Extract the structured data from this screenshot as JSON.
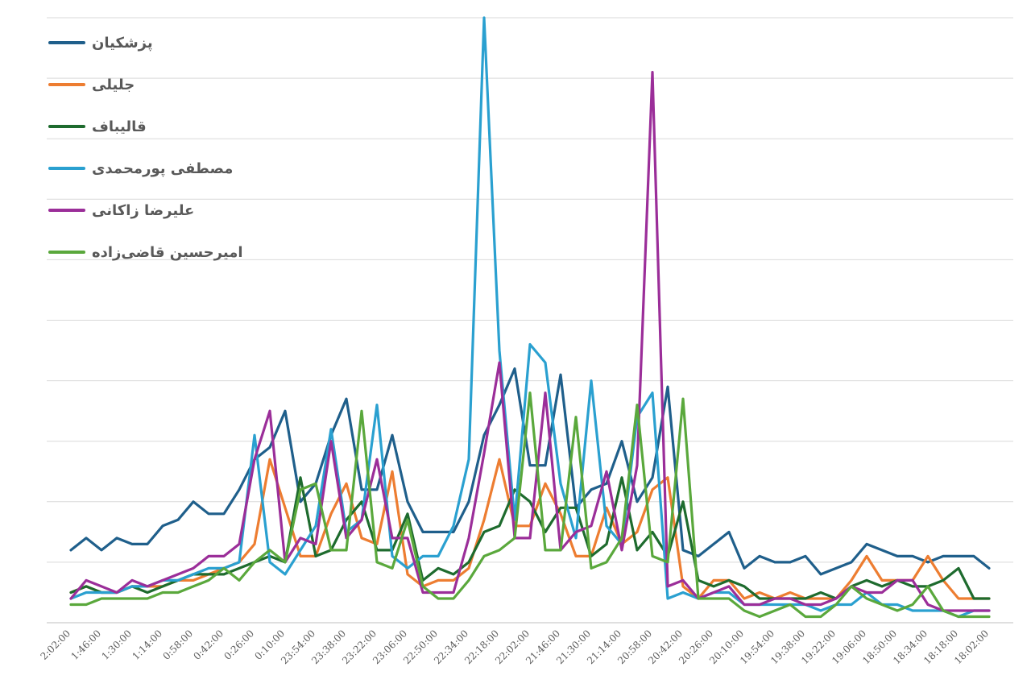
{
  "chart_data": {
    "type": "line",
    "title": "",
    "xlabel": "",
    "ylabel": "",
    "y_tick_labels_shown": false,
    "grid": "horizontal",
    "legend_position": "top-left",
    "ylim": [
      0,
      100
    ],
    "y_gridlines": 10,
    "x": [
      "2:02:00",
      "1:54:00",
      "1:46:00",
      "1:38:00",
      "1:30:00",
      "1:22:00",
      "1:14:00",
      "1:06:00",
      "0:58:00",
      "0:50:00",
      "0:42:00",
      "0:34:00",
      "0:26:00",
      "0:18:00",
      "0:10:00",
      "0:02:00",
      "23:54:00",
      "23:46:00",
      "23:38:00",
      "23:30:00",
      "23:22:00",
      "23:14:00",
      "23:06:00",
      "22:58:00",
      "22:50:00",
      "22:42:00",
      "22:34:00",
      "22:26:00",
      "22:18:00",
      "22:10:00",
      "22:02:00",
      "21:54:00",
      "21:46:00",
      "21:38:00",
      "21:30:00",
      "21:22:00",
      "21:14:00",
      "21:06:00",
      "20:58:00",
      "20:50:00",
      "20:42:00",
      "20:34:00",
      "20:26:00",
      "20:18:00",
      "20:10:00",
      "20:02:00",
      "19:54:00",
      "19:46:00",
      "19:38:00",
      "19:30:00",
      "19:22:00",
      "19:14:00",
      "19:06:00",
      "18:58:00",
      "18:50:00",
      "18:42:00",
      "18:34:00",
      "18:26:00",
      "18:18:00",
      "18:10:00",
      "18:02:00"
    ],
    "x_tick_labels": [
      "2:02:00",
      "1:46:00",
      "1:30:00",
      "1:14:00",
      "0:58:00",
      "0:42:00",
      "0:26:00",
      "0:10:00",
      "23:54:00",
      "23:38:00",
      "23:22:00",
      "23:06:00",
      "22:50:00",
      "22:34:00",
      "22:18:00",
      "22:02:00",
      "21:46:00",
      "21:30:00",
      "21:14:00",
      "20:58:00",
      "20:42:00",
      "20:26:00",
      "20:10:00",
      "19:54:00",
      "19:38:00",
      "19:22:00",
      "19:06:00",
      "18:50:00",
      "18:34:00",
      "18:18:00",
      "18:02:00"
    ],
    "series": [
      {
        "name": "پزشکیان",
        "color": "#1f5f8b",
        "values": [
          12,
          14,
          12,
          14,
          13,
          13,
          16,
          17,
          20,
          18,
          18,
          22,
          27,
          29,
          35,
          20,
          23,
          31,
          37,
          22,
          22,
          31,
          20,
          15,
          15,
          15,
          20,
          31,
          36,
          42,
          26,
          26,
          41,
          19,
          22,
          23,
          30,
          20,
          24,
          39,
          12,
          11,
          13,
          15,
          9,
          11,
          10,
          10,
          11,
          8,
          9,
          10,
          13,
          12,
          11,
          11,
          10,
          11,
          11,
          11,
          9
        ]
      },
      {
        "name": "جلیلی",
        "color": "#ed7d31",
        "values": [
          5,
          6,
          5,
          5,
          6,
          6,
          6,
          7,
          7,
          8,
          9,
          10,
          13,
          27,
          19,
          11,
          11,
          18,
          23,
          14,
          13,
          25,
          8,
          6,
          7,
          7,
          9,
          17,
          27,
          16,
          16,
          23,
          18,
          11,
          11,
          19,
          13,
          15,
          22,
          24,
          6,
          4,
          7,
          7,
          4,
          5,
          4,
          5,
          4,
          4,
          4,
          7,
          11,
          7,
          7,
          7,
          11,
          7,
          4,
          4,
          4
        ]
      },
      {
        "name": "قالیباف",
        "color": "#1e6b2e",
        "values": [
          5,
          6,
          5,
          5,
          6,
          5,
          6,
          7,
          8,
          8,
          8,
          9,
          10,
          11,
          10,
          24,
          11,
          12,
          17,
          20,
          12,
          12,
          18,
          7,
          9,
          8,
          10,
          15,
          16,
          22,
          20,
          15,
          19,
          19,
          11,
          13,
          24,
          12,
          15,
          11,
          20,
          7,
          6,
          7,
          6,
          4,
          4,
          4,
          4,
          5,
          4,
          6,
          7,
          6,
          7,
          6,
          6,
          7,
          9,
          4,
          4
        ]
      },
      {
        "name": "مصطفی پورمحمدی",
        "color": "#2aa0d0",
        "values": [
          4,
          5,
          5,
          5,
          6,
          6,
          7,
          7,
          8,
          9,
          9,
          10,
          31,
          10,
          8,
          12,
          16,
          32,
          15,
          17,
          36,
          11,
          9,
          11,
          11,
          16,
          27,
          100,
          45,
          17,
          46,
          43,
          23,
          14,
          40,
          16,
          13,
          34,
          38,
          4,
          5,
          4,
          5,
          5,
          3,
          3,
          3,
          3,
          3,
          2,
          3,
          3,
          5,
          3,
          3,
          2,
          2,
          2,
          1,
          2,
          2
        ]
      },
      {
        "name": "علیرضا زاکانی",
        "color": "#9b2e99",
        "values": [
          4,
          7,
          6,
          5,
          7,
          6,
          7,
          8,
          9,
          11,
          11,
          13,
          27,
          35,
          10,
          14,
          13,
          30,
          14,
          17,
          27,
          14,
          14,
          5,
          5,
          5,
          14,
          28,
          43,
          14,
          14,
          38,
          12,
          15,
          16,
          25,
          12,
          26,
          91,
          6,
          7,
          4,
          5,
          6,
          3,
          3,
          4,
          4,
          3,
          3,
          4,
          6,
          5,
          5,
          7,
          7,
          3,
          2,
          2,
          2,
          2
        ]
      },
      {
        "name": "امیرحسین قاضی‌زاده",
        "color": "#5aa83c",
        "values": [
          3,
          3,
          4,
          4,
          4,
          4,
          5,
          5,
          6,
          7,
          9,
          7,
          10,
          12,
          10,
          22,
          23,
          12,
          12,
          35,
          10,
          9,
          17,
          6,
          4,
          4,
          7,
          11,
          12,
          14,
          38,
          12,
          12,
          34,
          9,
          10,
          14,
          36,
          11,
          10,
          37,
          4,
          4,
          4,
          2,
          1,
          2,
          3,
          1,
          1,
          3,
          6,
          4,
          3,
          2,
          3,
          6,
          2,
          1,
          1,
          1
        ]
      }
    ]
  }
}
